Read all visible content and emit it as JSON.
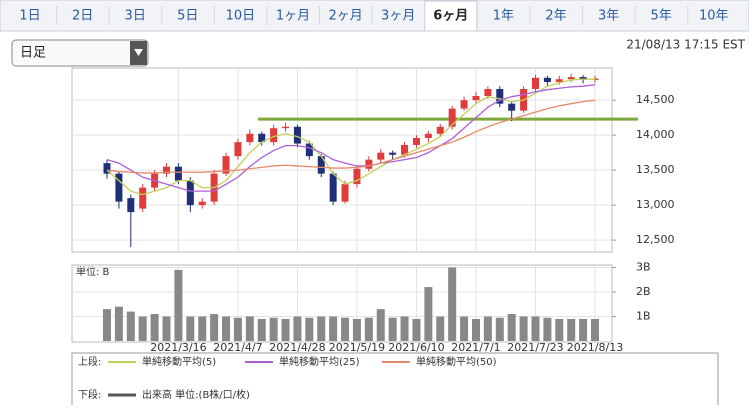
{
  "tabs": [
    "1日",
    "2日",
    "3日",
    "5日",
    "10日",
    "1ヶ月",
    "2ヶ月",
    "3ヶ月",
    "6ヶ月",
    "1年",
    "2年",
    "3年",
    "5年",
    "10年"
  ],
  "selected_tab": 8,
  "dropdown": "日足",
  "timestamp": "21/08/13 17:15 EST",
  "legend": {
    "upper_label": "上段:",
    "lower_label": "下段:"
  },
  "chart_data": [
    {
      "type": "candlestick",
      "categories": [
        null,
        null,
        null,
        null,
        null,
        null,
        "2021/3/16",
        null,
        null,
        null,
        null,
        "2021/4/7",
        null,
        null,
        null,
        null,
        "2021/4/28",
        null,
        null,
        null,
        null,
        "2021/5/19",
        null,
        null,
        null,
        null,
        "2021/6/10",
        null,
        null,
        null,
        null,
        "2021/7/1",
        null,
        null,
        null,
        null,
        "2021/7/23",
        null,
        null,
        null,
        null,
        "2021/8/13"
      ],
      "open": [
        13600,
        13450,
        13100,
        12950,
        13250,
        13450,
        13550,
        13350,
        13000,
        13050,
        13450,
        13700,
        13900,
        14020,
        13900,
        14100,
        14120,
        13880,
        13700,
        13450,
        13050,
        13300,
        13520,
        13650,
        13750,
        13720,
        13860,
        13960,
        14020,
        14120,
        14380,
        14500,
        14560,
        14660,
        14450,
        14350,
        14660,
        14820,
        14760,
        14800,
        14830,
        14790
      ],
      "high": [
        13650,
        13480,
        13150,
        13300,
        13500,
        13600,
        13600,
        13400,
        13100,
        13500,
        13750,
        13950,
        14080,
        14050,
        14150,
        14180,
        14150,
        13920,
        13730,
        13480,
        13350,
        13560,
        13700,
        13800,
        13780,
        13900,
        14000,
        14060,
        14160,
        14420,
        14550,
        14620,
        14700,
        14700,
        14480,
        14700,
        14860,
        14850,
        14850,
        14880,
        14860,
        14850
      ],
      "low": [
        13380,
        12950,
        12400,
        12900,
        13200,
        13400,
        13300,
        12900,
        12950,
        13000,
        13420,
        13650,
        13850,
        13850,
        13850,
        14050,
        13830,
        13650,
        13400,
        13000,
        13020,
        13250,
        13480,
        13600,
        13650,
        13680,
        13820,
        13900,
        13980,
        14080,
        14350,
        14450,
        14520,
        14400,
        14200,
        14320,
        14600,
        14700,
        14720,
        14760,
        14740,
        14750
      ],
      "close": [
        13450,
        13050,
        12900,
        13250,
        13450,
        13550,
        13350,
        13000,
        13050,
        13450,
        13700,
        13900,
        14020,
        13900,
        14100,
        14120,
        13880,
        13700,
        13450,
        13050,
        13300,
        13520,
        13650,
        13750,
        13720,
        13860,
        13960,
        14020,
        14120,
        14380,
        14500,
        14560,
        14660,
        14450,
        14350,
        14660,
        14820,
        14760,
        14800,
        14830,
        14790,
        14810
      ],
      "up_color": "#e03c3c",
      "down_color": "#1f2f7a",
      "series": [
        {
          "name": "単純移動平均(5)",
          "color": "#c3cf5a",
          "values": [
            13500,
            13350,
            13200,
            13150,
            13200,
            13250,
            13350,
            13350,
            13250,
            13250,
            13350,
            13550,
            13750,
            13900,
            13980,
            14020,
            13980,
            13900,
            13700,
            13450,
            13300,
            13350,
            13450,
            13550,
            13650,
            13720,
            13800,
            13880,
            13980,
            14150,
            14300,
            14450,
            14550,
            14520,
            14480,
            14500,
            14600,
            14700,
            14750,
            14790,
            14800,
            14800
          ]
        },
        {
          "name": "単純移動平均(25)",
          "color": "#b05fd6",
          "values": [
            13650,
            13600,
            13500,
            13400,
            13350,
            13300,
            13250,
            13200,
            13200,
            13200,
            13300,
            13400,
            13550,
            13680,
            13780,
            13850,
            13850,
            13820,
            13750,
            13650,
            13600,
            13560,
            13560,
            13600,
            13620,
            13650,
            13680,
            13750,
            13850,
            13950,
            14100,
            14250,
            14400,
            14500,
            14550,
            14580,
            14620,
            14650,
            14670,
            14690,
            14700,
            14720
          ]
        },
        {
          "name": "単純移動平均(50)",
          "color": "#e5896a",
          "values": [
            13500,
            13480,
            13470,
            13460,
            13460,
            13470,
            13470,
            13470,
            13470,
            13480,
            13490,
            13500,
            13520,
            13540,
            13560,
            13570,
            13560,
            13550,
            13540,
            13530,
            13530,
            13540,
            13560,
            13600,
            13650,
            13700,
            13750,
            13800,
            13850,
            13900,
            13970,
            14050,
            14120,
            14180,
            14230,
            14280,
            14330,
            14380,
            14420,
            14450,
            14480,
            14500
          ]
        }
      ],
      "reference_line": 14230,
      "reference_color": "#7aa83a",
      "ylim": [
        12330,
        14960
      ],
      "yticks": [
        {
          "value": 12500,
          "label": "12,500"
        },
        {
          "value": 13000,
          "label": "13,000"
        },
        {
          "value": 13500,
          "label": "13,500"
        },
        {
          "value": 14000,
          "label": "14,000"
        },
        {
          "value": 14500,
          "label": "14,500"
        }
      ],
      "grid": true
    },
    {
      "type": "bar",
      "ylabel": "単位: B",
      "series": [
        {
          "name": "出来高 単位:(B株/口/枚)",
          "color": "#888888",
          "values": [
            1.3,
            1.4,
            1.2,
            1.0,
            1.1,
            1.0,
            2.9,
            1.0,
            1.0,
            1.1,
            1.0,
            0.95,
            1.0,
            0.9,
            0.95,
            0.9,
            1.0,
            0.95,
            1.0,
            1.0,
            0.95,
            0.9,
            0.95,
            1.3,
            0.95,
            1.0,
            0.9,
            2.2,
            1.0,
            3.0,
            1.0,
            0.9,
            1.0,
            0.95,
            1.1,
            1.0,
            1.0,
            0.95,
            0.9,
            0.9,
            0.9,
            0.9
          ]
        }
      ],
      "ylim": [
        0,
        3.1
      ],
      "yticks": [
        {
          "value": 1,
          "label": "1B"
        },
        {
          "value": 2,
          "label": "2B"
        },
        {
          "value": 3,
          "label": "3B"
        }
      ],
      "grid": true
    }
  ]
}
